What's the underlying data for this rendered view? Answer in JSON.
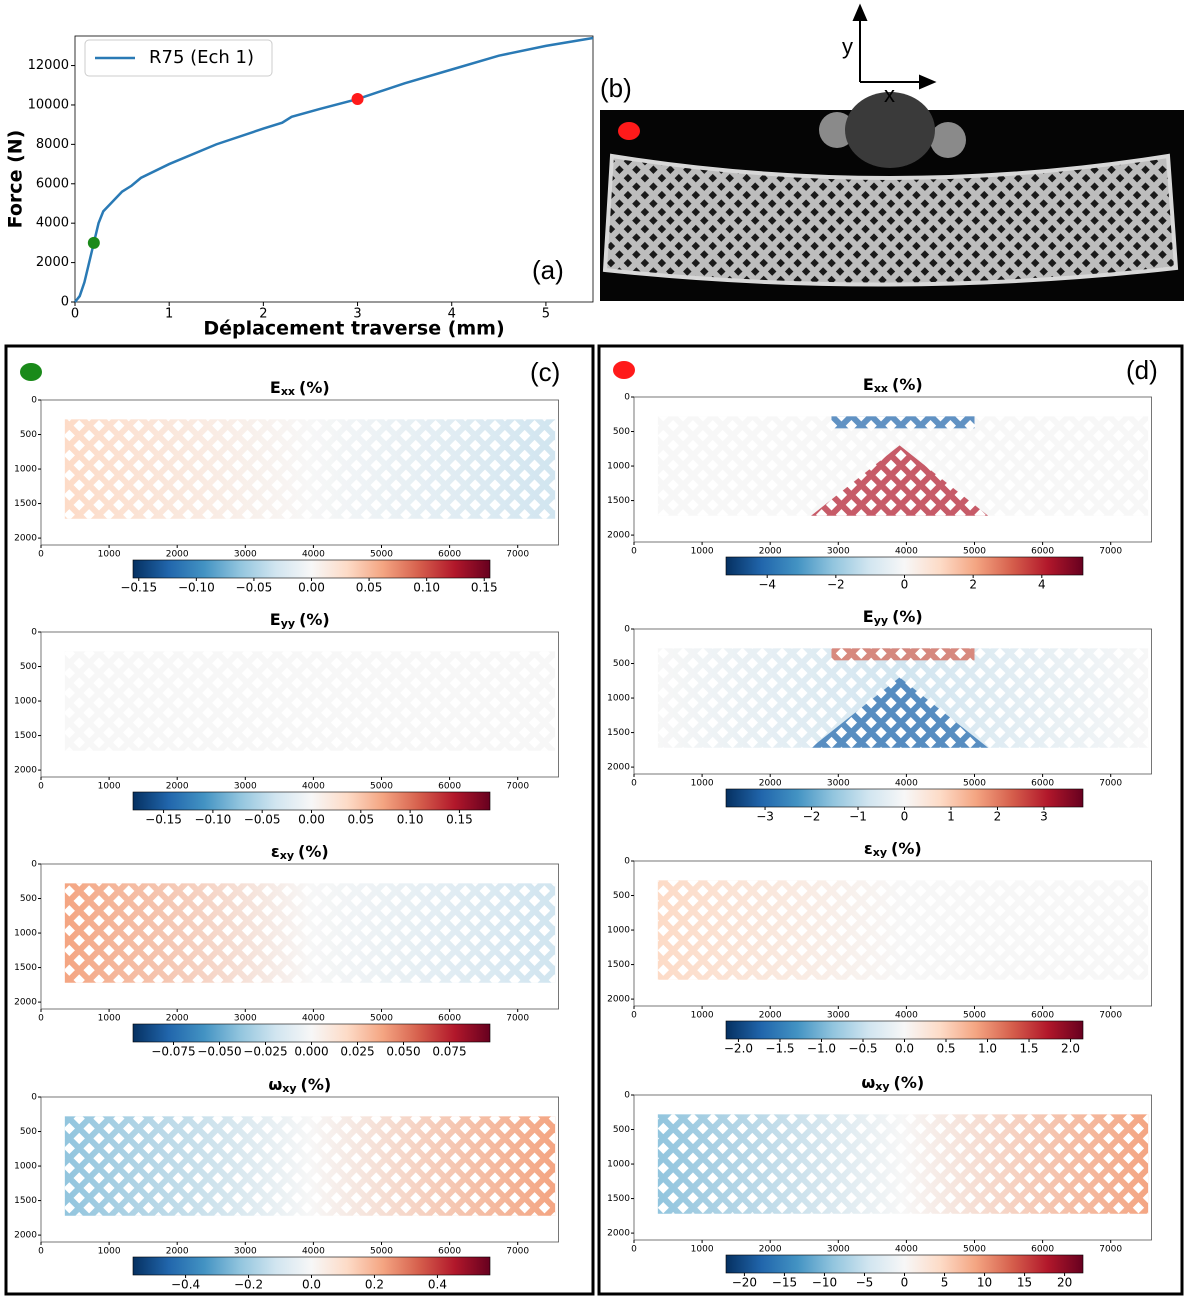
{
  "labels": {
    "a": "(a)",
    "b": "(b)",
    "c": "(c)",
    "d": "(d)",
    "axis_x": "x",
    "axis_y": "y"
  },
  "chart_data": [
    {
      "type": "line",
      "xlabel": "Déplacement traverse (mm)",
      "ylabel": "Force (N)",
      "x": [
        0,
        0.05,
        0.1,
        0.15,
        0.2,
        0.25,
        0.3,
        0.4,
        0.5,
        0.6,
        0.7,
        1,
        1.5,
        2,
        2.2,
        2.3,
        2.6,
        3,
        3.5,
        4,
        4.5,
        5,
        5.5
      ],
      "series": [
        {
          "name": "R75 (Ech 1)",
          "color": "#2a7ab5",
          "values": [
            0,
            300,
            1000,
            2000,
            3000,
            4000,
            4600,
            5100,
            5600,
            5900,
            6300,
            7000,
            8000,
            8800,
            9100,
            9400,
            9800,
            10300,
            11100,
            11800,
            12500,
            13000,
            13400
          ]
        }
      ],
      "points": [
        {
          "x": 0.2,
          "y": 3000,
          "color": "#1a8a1a"
        },
        {
          "x": 3,
          "y": 10300,
          "color": "#ff1a1a"
        }
      ],
      "xlim": [
        0,
        5.5
      ],
      "ylim": [
        0,
        13500
      ],
      "xticks": [
        0,
        1,
        2,
        3,
        4,
        5
      ],
      "yticks": [
        0,
        2000,
        4000,
        6000,
        8000,
        10000,
        12000
      ],
      "legend": "upper left"
    },
    {
      "type": "field",
      "title": {
        "symbol": "E",
        "subscript": "xx",
        "unit": "(%)"
      },
      "xlim": [
        0,
        7600
      ],
      "ylim": [
        2100,
        0
      ],
      "xticks": [
        0,
        1000,
        2000,
        3000,
        4000,
        5000,
        6000,
        7000
      ],
      "yticks": [
        0,
        500,
        1000,
        1500,
        2000
      ],
      "colormap": "RdBu_r",
      "clim": [
        -0.155,
        0.155
      ],
      "cticks": [
        {
          "value": -0.15,
          "label": "−0.15"
        },
        {
          "value": -0.1,
          "label": "−0.10"
        },
        {
          "value": -0.05,
          "label": "−0.05"
        },
        {
          "value": 0,
          "label": "0.00"
        },
        0.05,
        {
          "value": 0.1,
          "label": "0.10"
        },
        0.15
      ]
    },
    {
      "type": "field",
      "title": {
        "symbol": "E",
        "subscript": "yy",
        "unit": "(%)"
      },
      "xlim": [
        0,
        7600
      ],
      "ylim": [
        2100,
        0
      ],
      "xticks": [
        0,
        1000,
        2000,
        3000,
        4000,
        5000,
        6000,
        7000
      ],
      "yticks": [
        0,
        500,
        1000,
        1500,
        2000
      ],
      "colormap": "RdBu_r",
      "clim": [
        -0.181,
        0.181
      ],
      "cticks": [
        {
          "value": -0.15,
          "label": "−0.15"
        },
        {
          "value": -0.1,
          "label": "−0.10"
        },
        {
          "value": -0.05,
          "label": "−0.05"
        },
        {
          "value": 0,
          "label": "0.00"
        },
        0.05,
        {
          "value": 0.1,
          "label": "0.10"
        },
        0.15
      ]
    },
    {
      "type": "field",
      "title": {
        "symbol": "ε",
        "subscript": "xy",
        "unit": "(%)"
      },
      "xlim": [
        0,
        7600
      ],
      "ylim": [
        2100,
        0
      ],
      "xticks": [
        0,
        1000,
        2000,
        3000,
        4000,
        5000,
        6000,
        7000
      ],
      "yticks": [
        0,
        500,
        1000,
        1500,
        2000
      ],
      "colormap": "RdBu_r",
      "clim": [
        -0.097,
        0.097
      ],
      "cticks": [
        {
          "value": -0.075,
          "label": "−0.075"
        },
        {
          "value": -0.05,
          "label": "−0.050"
        },
        {
          "value": -0.025,
          "label": "−0.025"
        },
        {
          "value": 0,
          "label": "0.000"
        },
        0.025,
        {
          "value": 0.05,
          "label": "0.050"
        },
        0.075
      ]
    },
    {
      "type": "field",
      "title": {
        "symbol": "ω",
        "subscript": "xy",
        "unit": "(%)"
      },
      "xlim": [
        0,
        7600
      ],
      "ylim": [
        2100,
        0
      ],
      "xticks": [
        0,
        1000,
        2000,
        3000,
        4000,
        5000,
        6000,
        7000
      ],
      "yticks": [
        0,
        500,
        1000,
        1500,
        2000
      ],
      "colormap": "RdBu_r",
      "clim": [
        -0.567,
        0.567
      ],
      "cticks": [
        {
          "value": -0.4,
          "label": "−0.4"
        },
        {
          "value": -0.2,
          "label": "−0.2"
        },
        {
          "value": 0,
          "label": "0.0"
        },
        0.2,
        0.4
      ]
    },
    {
      "type": "field",
      "title": {
        "symbol": "E",
        "subscript": "xx",
        "unit": "(%)"
      },
      "xlim": [
        0,
        7600
      ],
      "ylim": [
        2100,
        0
      ],
      "xticks": [
        0,
        1000,
        2000,
        3000,
        4000,
        5000,
        6000,
        7000
      ],
      "yticks": [
        0,
        500,
        1000,
        1500,
        2000
      ],
      "colormap": "RdBu_r",
      "clim": [
        -5.2,
        5.2
      ],
      "cticks": [
        {
          "value": -4,
          "label": "−4"
        },
        {
          "value": -2,
          "label": "−2"
        },
        0,
        2,
        4
      ]
    },
    {
      "type": "field",
      "title": {
        "symbol": "E",
        "subscript": "yy",
        "unit": "(%)"
      },
      "xlim": [
        0,
        7600
      ],
      "ylim": [
        2100,
        0
      ],
      "xticks": [
        0,
        1000,
        2000,
        3000,
        4000,
        5000,
        6000,
        7000
      ],
      "yticks": [
        0,
        500,
        1000,
        1500,
        2000
      ],
      "colormap": "RdBu_r",
      "clim": [
        -3.84,
        3.84
      ],
      "cticks": [
        {
          "value": -3,
          "label": "−3"
        },
        {
          "value": -2,
          "label": "−2"
        },
        {
          "value": -1,
          "label": "−1"
        },
        0,
        1,
        2,
        3
      ]
    },
    {
      "type": "field",
      "title": {
        "symbol": "ε",
        "subscript": "xy",
        "unit": "(%)"
      },
      "xlim": [
        0,
        7600
      ],
      "ylim": [
        2100,
        0
      ],
      "xticks": [
        0,
        1000,
        2000,
        3000,
        4000,
        5000,
        6000,
        7000
      ],
      "yticks": [
        0,
        500,
        1000,
        1500,
        2000
      ],
      "colormap": "RdBu_r",
      "clim": [
        -2.15,
        2.15
      ],
      "cticks": [
        {
          "value": -2,
          "label": "−2.0"
        },
        {
          "value": -1.5,
          "label": "−1.5"
        },
        {
          "value": -1,
          "label": "−1.0"
        },
        {
          "value": -0.5,
          "label": "−0.5"
        },
        {
          "value": 0,
          "label": "0.0"
        },
        0.5,
        {
          "value": 1,
          "label": "1.0"
        },
        1.5,
        {
          "value": 2,
          "label": "2.0"
        }
      ]
    },
    {
      "type": "field",
      "title": {
        "symbol": "ω",
        "subscript": "xy",
        "unit": "(%)"
      },
      "xlim": [
        0,
        7600
      ],
      "ylim": [
        2100,
        0
      ],
      "xticks": [
        0,
        1000,
        2000,
        3000,
        4000,
        5000,
        6000,
        7000
      ],
      "yticks": [
        0,
        500,
        1000,
        1500,
        2000
      ],
      "colormap": "RdBu_r",
      "clim": [
        -22.3,
        22.3
      ],
      "cticks": [
        {
          "value": -20,
          "label": "−20"
        },
        {
          "value": -15,
          "label": "−15"
        },
        {
          "value": -10,
          "label": "−10"
        },
        {
          "value": -5,
          "label": "−5"
        },
        0,
        5,
        10,
        15,
        20
      ]
    }
  ]
}
